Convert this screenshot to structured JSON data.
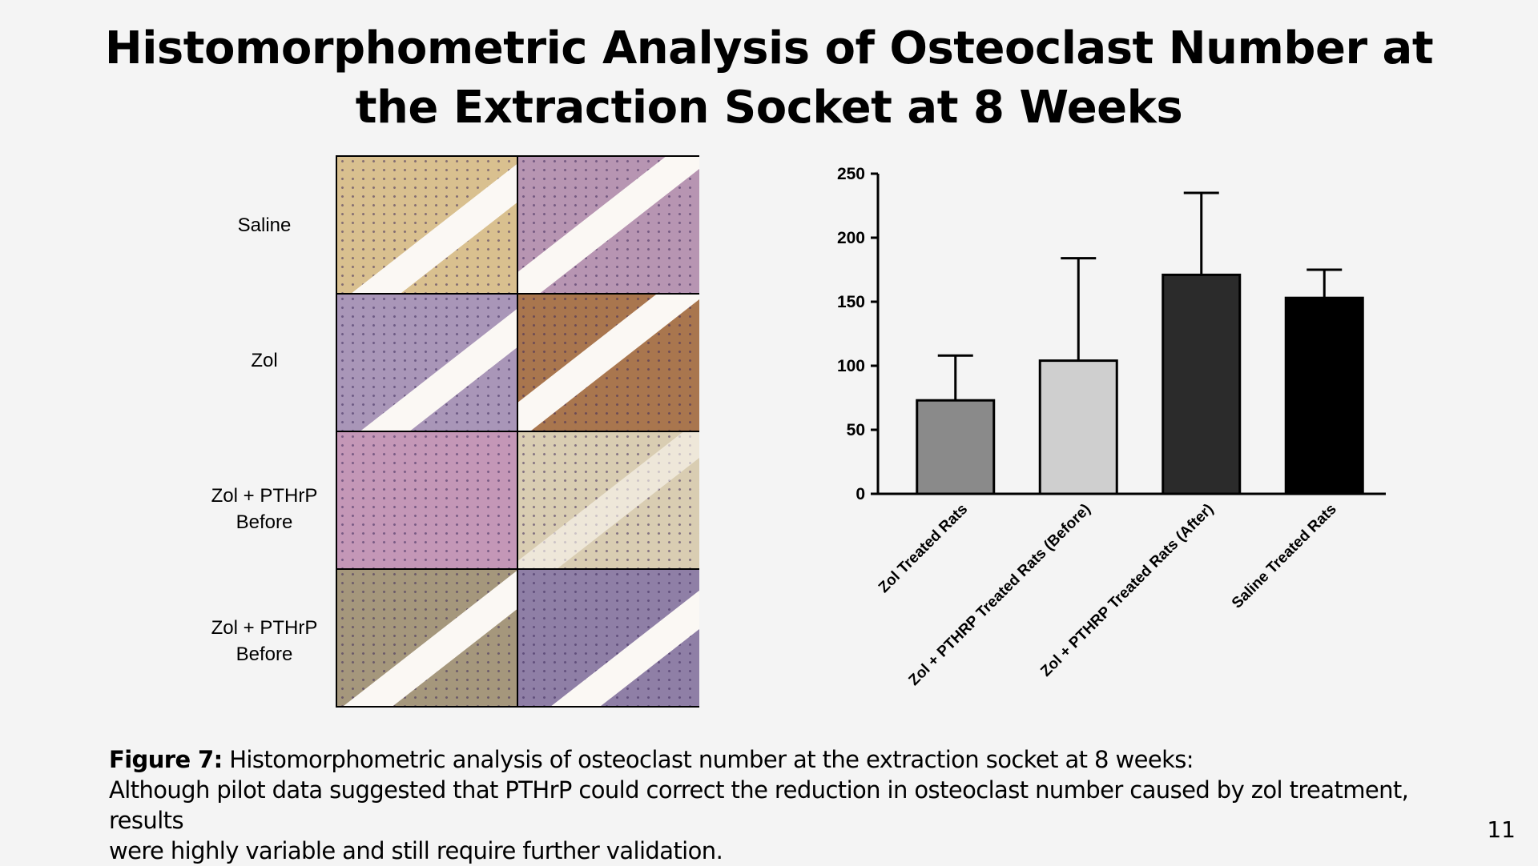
{
  "slide": {
    "title_line1": "Histomorphometric Analysis of Osteoclast Number at",
    "title_line2": "the Extraction Socket at 8 Weeks",
    "page_number": "11"
  },
  "histology": {
    "row_labels": [
      {
        "line1": "Saline",
        "line2": ""
      },
      {
        "line1": "Zol",
        "line2": ""
      },
      {
        "line1": "Zol + PTHrP",
        "line2": "Before"
      },
      {
        "line1": "Zol + PTHrP",
        "line2": "Before"
      }
    ],
    "tile_colors": [
      [
        "#d9c08f",
        "#b795b2"
      ],
      [
        "#a996b8",
        "#a9764e"
      ],
      [
        "#c497b7",
        "#d9cdb2"
      ],
      [
        "#a5977c",
        "#8f7fa6"
      ]
    ]
  },
  "chart_data": {
    "type": "bar",
    "title": "",
    "xlabel": "",
    "ylabel": "",
    "categories": [
      "Zol Treated Rats",
      "Zol + PTHRP Treated Rats (Before)",
      "Zol + PTHRP Treated Rats (After)",
      "Saline Treated Rats"
    ],
    "values": [
      73,
      104,
      171,
      153
    ],
    "error_upper": [
      108,
      184,
      235,
      175
    ],
    "ylim": [
      0,
      250
    ],
    "yticks": [
      0,
      50,
      100,
      150,
      200,
      250
    ],
    "bar_colors": [
      "#8a8a8a",
      "#cfcfcf",
      "#2b2b2b",
      "#000000"
    ],
    "grid": false
  },
  "caption": {
    "label": "Figure 7:",
    "line1": " Histomorphometric analysis of osteoclast number at the extraction socket at 8 weeks:",
    "line2": "Although pilot data suggested that PTHrP could correct the reduction in osteoclast number caused by zol treatment, results",
    "line3": "were highly variable and still require further validation."
  }
}
